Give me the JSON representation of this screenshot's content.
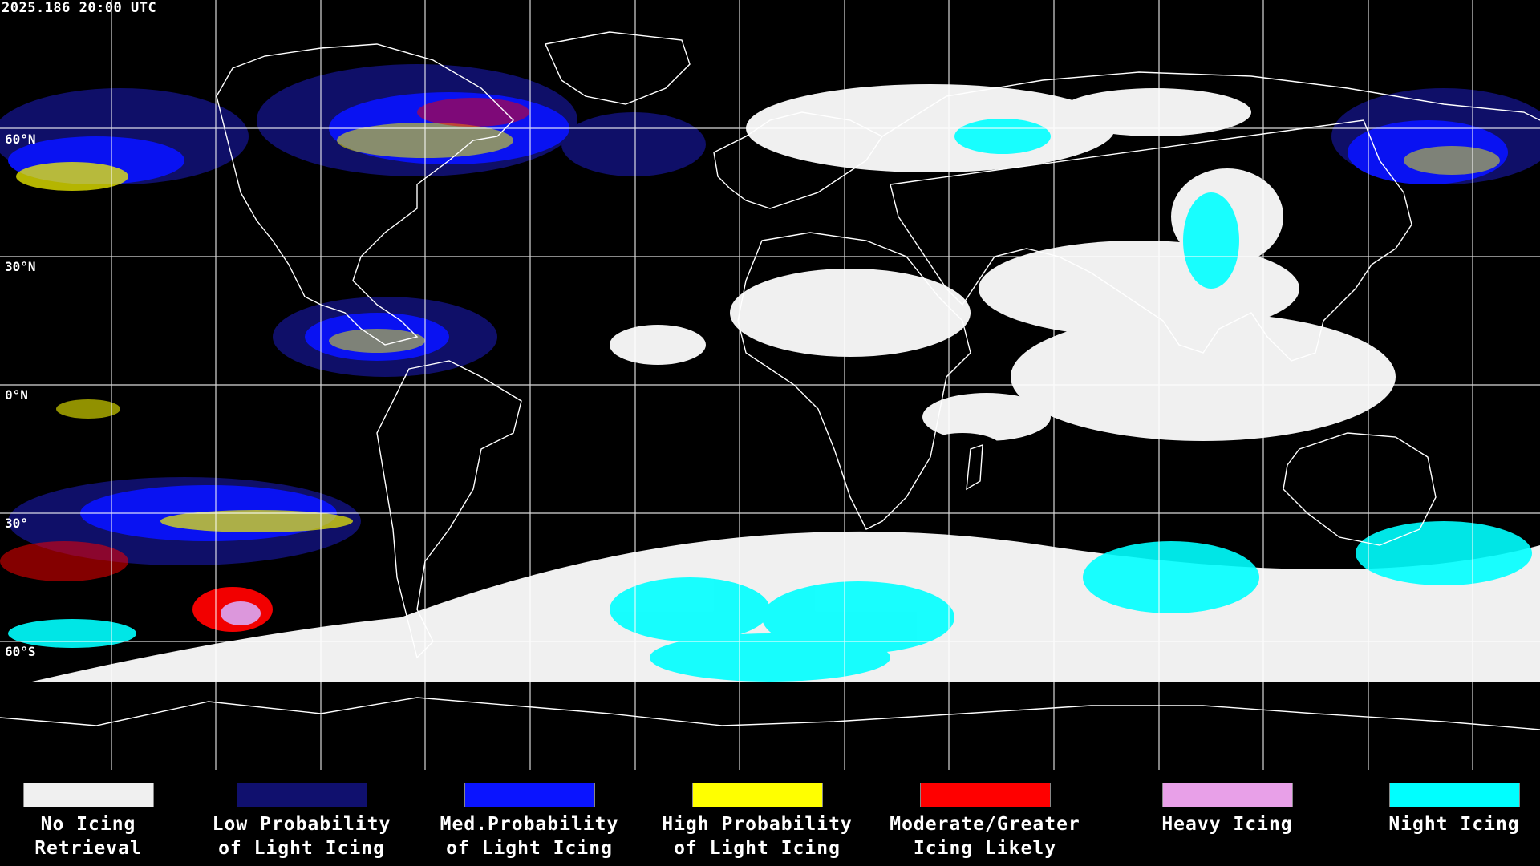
{
  "timestamp": "2025.186 20:00 UTC",
  "lat_labels": [
    "60°N",
    "30°N",
    "0°N",
    "30°",
    "60°S"
  ],
  "colors": {
    "background": "#000000",
    "graticule": "#ffffff",
    "coastline": "#ffffff",
    "no_icing": "#f0f0f0",
    "low": "#10106e",
    "med": "#0a14ff",
    "high": "#ffff00",
    "moderate": "#ff0000",
    "heavy": "#e8a0e8",
    "night": "#00ffff"
  },
  "legend": [
    {
      "label": "No Icing\nRetrieval",
      "color": "#f0f0f0"
    },
    {
      "label": "Low Probability\nof Light Icing",
      "color": "#10106e"
    },
    {
      "label": "Med.Probability\nof Light Icing",
      "color": "#0a14ff"
    },
    {
      "label": "High Probability\nof Light Icing",
      "color": "#ffff00"
    },
    {
      "label": "Moderate/Greater\nIcing Likely",
      "color": "#ff0000"
    },
    {
      "label": "Heavy Icing",
      "color": "#e8a0e8"
    },
    {
      "label": "Night Icing",
      "color": "#00ffff"
    }
  ]
}
